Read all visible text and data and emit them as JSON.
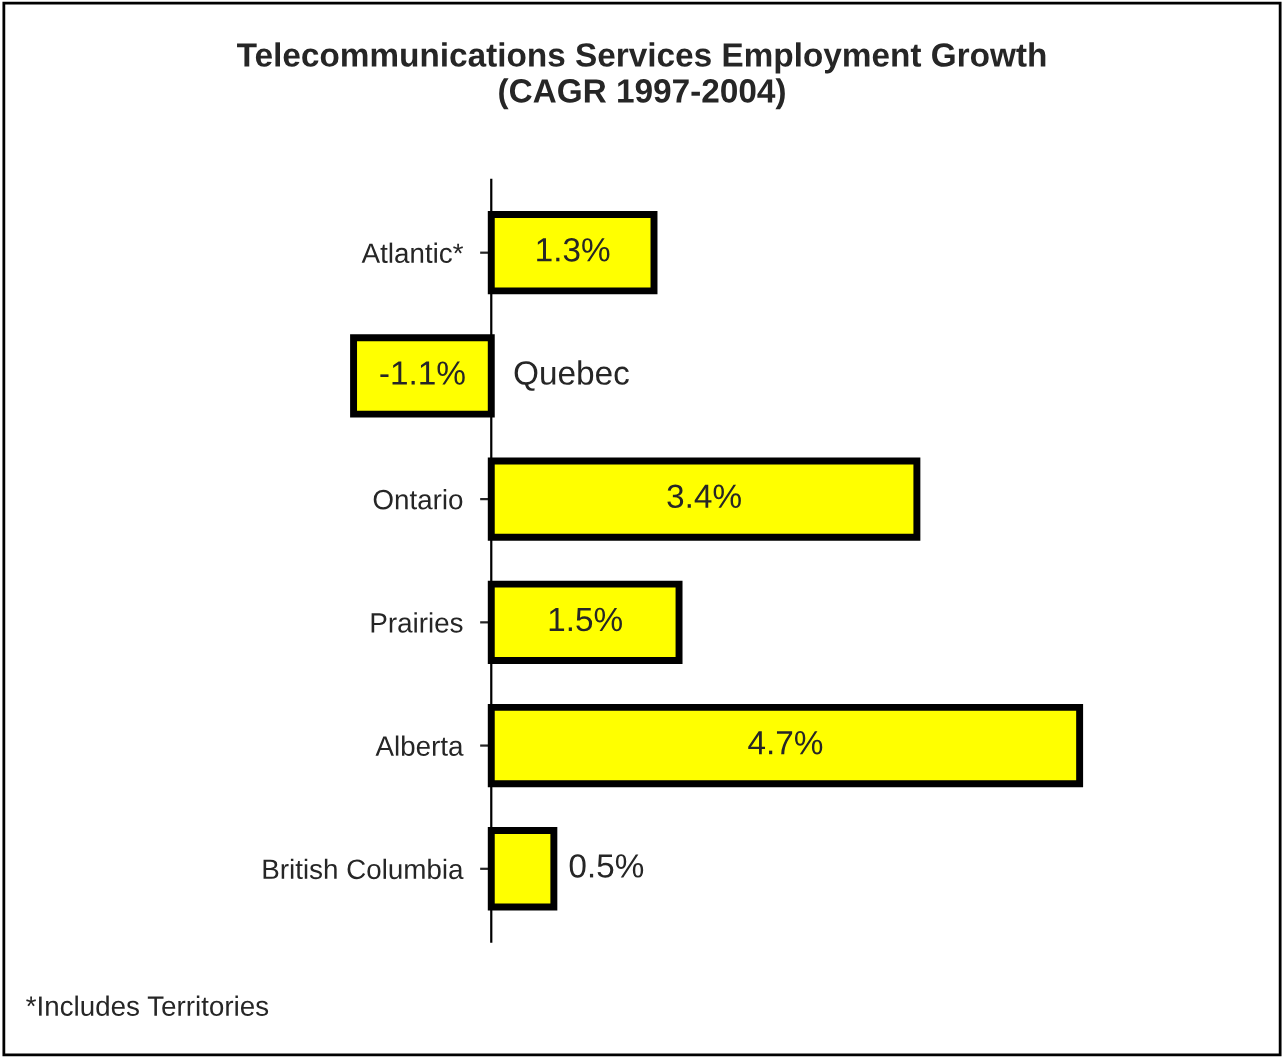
{
  "chart_data": {
    "type": "bar",
    "orientation": "horizontal",
    "title": "Telecommunications Services Employment Growth\n(CAGR 1997-2004)",
    "categories": [
      "Atlantic*",
      "Quebec",
      "Ontario",
      "Prairies",
      "Alberta",
      "British Columbia"
    ],
    "values": [
      1.3,
      -1.1,
      3.4,
      1.5,
      4.7,
      0.5
    ],
    "value_labels": [
      "1.3%",
      "-1.1%",
      "3.4%",
      "1.5%",
      "4.7%",
      "0.5%"
    ],
    "color": "#ffff00",
    "tick_labels": "y",
    "grid": false,
    "annotations": [
      "*Includes Territories"
    ]
  }
}
